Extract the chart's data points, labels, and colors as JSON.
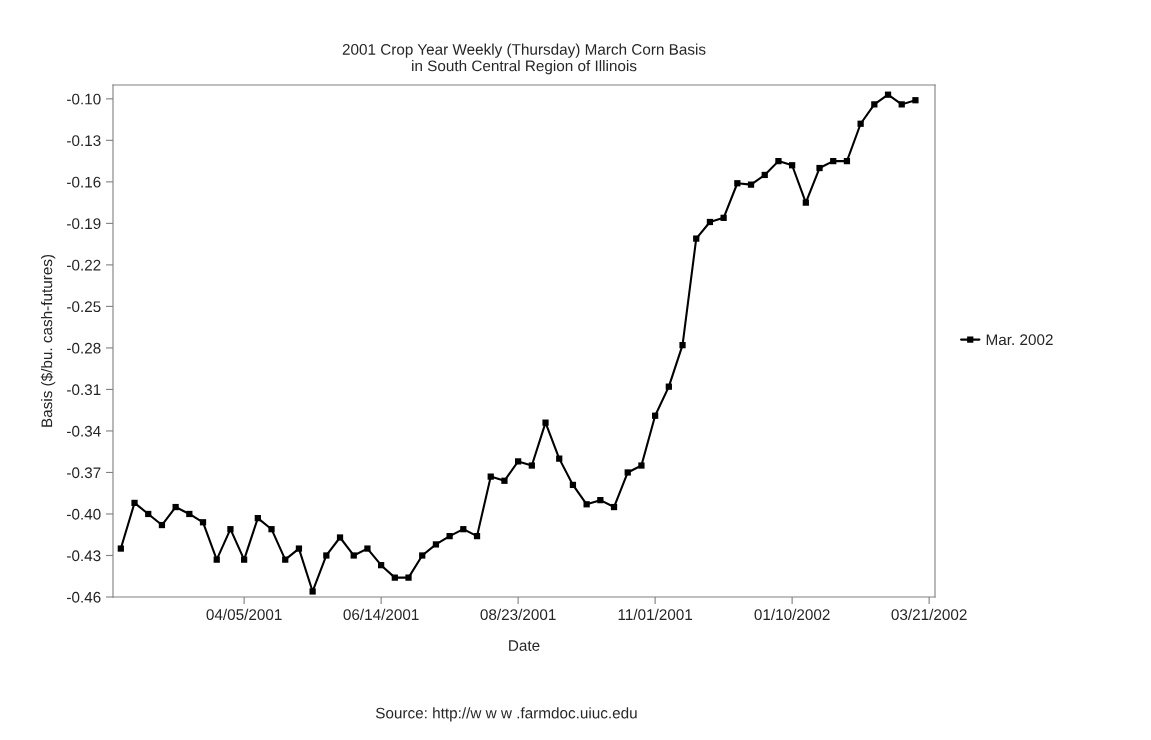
{
  "chart_data": {
    "type": "line",
    "title": "2001 Crop Year Weekly (Thursday) March Corn Basis\nin South Central Region of Illinois",
    "xlabel": "Date",
    "ylabel": "Basis ($/bu. cash-futures)",
    "annotations": [
      "Source: http://w w w .farmdoc.uiuc.edu"
    ],
    "x": [
      "2001-02-01",
      "2001-02-08",
      "2001-02-15",
      "2001-02-22",
      "2001-03-01",
      "2001-03-08",
      "2001-03-15",
      "2001-03-22",
      "2001-03-29",
      "2001-04-05",
      "2001-04-12",
      "2001-04-19",
      "2001-04-26",
      "2001-05-03",
      "2001-05-10",
      "2001-05-17",
      "2001-05-24",
      "2001-05-31",
      "2001-06-07",
      "2001-06-14",
      "2001-06-21",
      "2001-06-28",
      "2001-07-05",
      "2001-07-12",
      "2001-07-19",
      "2001-07-26",
      "2001-08-02",
      "2001-08-09",
      "2001-08-16",
      "2001-08-23",
      "2001-08-30",
      "2001-09-06",
      "2001-09-13",
      "2001-09-20",
      "2001-09-27",
      "2001-10-04",
      "2001-10-11",
      "2001-10-18",
      "2001-10-25",
      "2001-11-01",
      "2001-11-08",
      "2001-11-15",
      "2001-11-22",
      "2001-11-29",
      "2001-12-06",
      "2001-12-13",
      "2001-12-20",
      "2001-12-27",
      "2002-01-03",
      "2002-01-10",
      "2002-01-17",
      "2002-01-24",
      "2002-01-31",
      "2002-02-07",
      "2002-02-14",
      "2002-02-21",
      "2002-02-28",
      "2002-03-07",
      "2002-03-14"
    ],
    "series": [
      {
        "name": "Mar. 2002",
        "color": "#000000",
        "values": [
          -0.425,
          -0.392,
          -0.4,
          -0.408,
          -0.395,
          -0.4,
          -0.406,
          -0.433,
          -0.411,
          -0.433,
          -0.403,
          -0.411,
          -0.433,
          -0.425,
          -0.456,
          -0.43,
          -0.417,
          -0.43,
          -0.425,
          -0.437,
          -0.446,
          -0.446,
          -0.43,
          -0.422,
          -0.416,
          -0.411,
          -0.416,
          -0.373,
          -0.376,
          -0.362,
          -0.365,
          -0.334,
          -0.36,
          -0.379,
          -0.393,
          -0.39,
          -0.395,
          -0.37,
          -0.365,
          -0.329,
          -0.308,
          -0.278,
          -0.201,
          -0.189,
          -0.186,
          -0.161,
          -0.162,
          -0.155,
          -0.145,
          -0.148,
          -0.175,
          -0.15,
          -0.145,
          -0.145,
          -0.118,
          -0.104,
          -0.097,
          -0.104,
          -0.101
        ]
      }
    ],
    "xlim": [
      "2001-01-28",
      "2002-03-24"
    ],
    "xticks": [
      {
        "value": "2001-04-05",
        "label": "04/05/2001"
      },
      {
        "value": "2001-06-14",
        "label": "06/14/2001"
      },
      {
        "value": "2001-08-23",
        "label": "08/23/2001"
      },
      {
        "value": "2001-11-01",
        "label": "11/01/2001"
      },
      {
        "value": "2002-01-10",
        "label": "01/10/2002"
      },
      {
        "value": "2002-03-21",
        "label": "03/21/2002"
      }
    ],
    "ylim": [
      -0.46,
      -0.09
    ],
    "yticks": [
      {
        "value": -0.46,
        "label": "-0.46"
      },
      {
        "value": -0.43,
        "label": "-0.43"
      },
      {
        "value": -0.4,
        "label": "-0.40"
      },
      {
        "value": -0.37,
        "label": "-0.37"
      },
      {
        "value": -0.34,
        "label": "-0.34"
      },
      {
        "value": -0.31,
        "label": "-0.31"
      },
      {
        "value": -0.28,
        "label": "-0.28"
      },
      {
        "value": -0.25,
        "label": "-0.25"
      },
      {
        "value": -0.22,
        "label": "-0.22"
      },
      {
        "value": -0.19,
        "label": "-0.19"
      },
      {
        "value": -0.16,
        "label": "-0.16"
      },
      {
        "value": -0.13,
        "label": "-0.13"
      },
      {
        "value": -0.1,
        "label": "-0.10"
      }
    ],
    "grid": false,
    "legend": "right",
    "marker": "square",
    "line_style": "solid"
  }
}
